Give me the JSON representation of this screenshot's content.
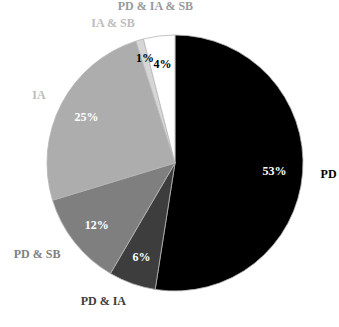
{
  "chart_data": {
    "type": "pie",
    "categories": [
      "PD",
      "PD & IA",
      "PD & SB",
      "IA",
      "IA & SB",
      "PD & IA & SB"
    ],
    "values": [
      53,
      6,
      12,
      25,
      1,
      4
    ],
    "value_labels": [
      "53%",
      "6%",
      "12%",
      "25%",
      "1%",
      "4%"
    ],
    "colors": [
      "#000000",
      "#3d3d3d",
      "#7f7f7f",
      "#adadad",
      "#d6d6d6",
      "#ffffff"
    ],
    "data_labels": true
  }
}
